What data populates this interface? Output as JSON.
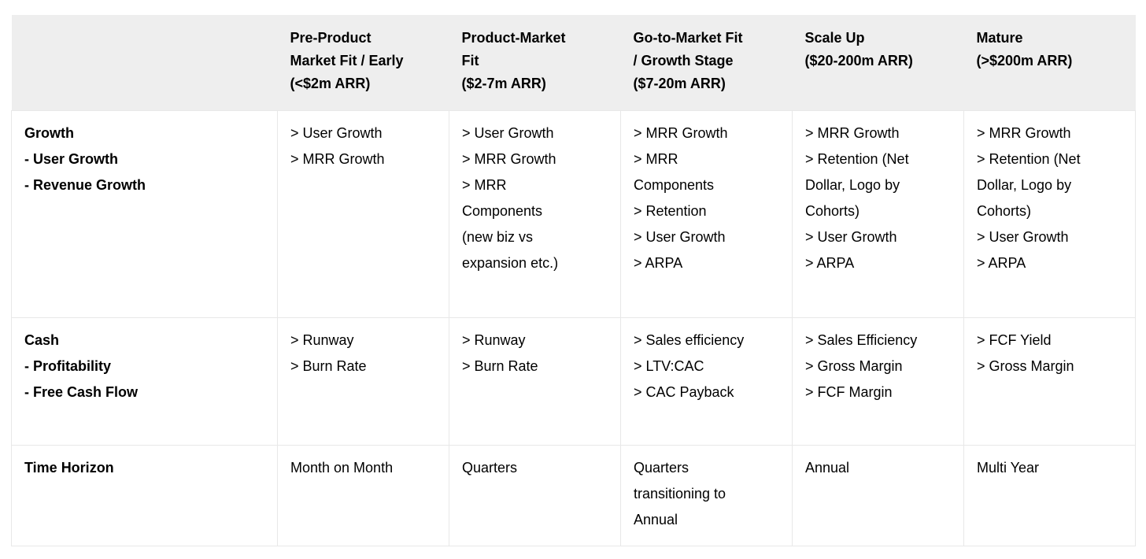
{
  "table": {
    "header": {
      "cells": [
        "",
        "Pre-Product\nMarket Fit / Early\n(<$2m ARR)",
        "Product-Market\nFit\n($2-7m ARR)",
        "Go-to-Market Fit\n/ Growth Stage\n($7-20m ARR)",
        "Scale Up\n($20-200m ARR)",
        "Mature\n(>$200m ARR)"
      ]
    },
    "rows": [
      {
        "label": "Growth\n- User Growth\n- Revenue Growth",
        "cells": [
          "> User Growth\n> MRR Growth",
          "> User Growth\n> MRR Growth\n> MRR\nComponents\n(new biz vs\nexpansion etc.)",
          "> MRR Growth\n> MRR\nComponents\n> Retention\n> User Growth\n> ARPA",
          "> MRR Growth\n> Retention (Net\nDollar, Logo by\nCohorts)\n> User Growth\n> ARPA",
          "> MRR Growth\n> Retention (Net\nDollar, Logo by\nCohorts)\n> User Growth\n> ARPA"
        ]
      },
      {
        "label": "Cash\n- Profitability\n- Free Cash Flow",
        "cells": [
          "> Runway\n> Burn Rate",
          "> Runway\n> Burn Rate",
          "> Sales efficiency\n> LTV:CAC\n> CAC Payback",
          "> Sales Efficiency\n> Gross Margin\n> FCF Margin",
          "> FCF Yield\n> Gross Margin"
        ]
      },
      {
        "label": "Time Horizon",
        "cells": [
          "Month on Month",
          "Quarters",
          "Quarters\ntransitioning to\nAnnual",
          "Annual",
          "Multi Year"
        ]
      }
    ]
  },
  "colors": {
    "header_bg": "#eeeeee",
    "border": "#e8e8e8",
    "text": "#000000",
    "body_bg": "#ffffff"
  }
}
